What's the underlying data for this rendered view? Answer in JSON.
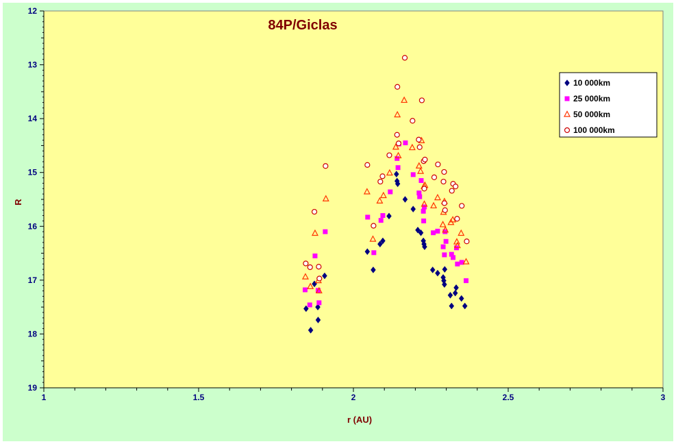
{
  "chart_data": {
    "type": "scatter",
    "title": "84P/Giclas",
    "xlabel": "r (AU)",
    "ylabel": "R",
    "xlim": [
      1,
      3
    ],
    "ylim": [
      12,
      19
    ],
    "y_inverted": true,
    "x_ticks": [
      "1",
      "1.5",
      "2",
      "2.5",
      "3"
    ],
    "y_ticks": [
      "12",
      "13",
      "14",
      "15",
      "16",
      "17",
      "18",
      "19"
    ],
    "grid": false,
    "legend_position": "right",
    "plot_background": "#ffff99",
    "figure_background": "#ccffcc",
    "series": [
      {
        "name": "10 000km",
        "marker": "diamond",
        "color": "#000080",
        "points": [
          [
            1.847,
            17.53
          ],
          [
            1.862,
            17.93
          ],
          [
            1.874,
            17.07
          ],
          [
            1.885,
            17.5
          ],
          [
            1.886,
            17.74
          ],
          [
            1.907,
            16.92
          ],
          [
            2.045,
            16.47
          ],
          [
            2.064,
            16.81
          ],
          [
            2.086,
            16.33
          ],
          [
            2.095,
            16.27
          ],
          [
            2.115,
            15.81
          ],
          [
            2.139,
            15.03
          ],
          [
            2.141,
            15.16
          ],
          [
            2.143,
            15.21
          ],
          [
            2.167,
            15.5
          ],
          [
            2.193,
            15.68
          ],
          [
            2.208,
            16.07
          ],
          [
            2.218,
            16.12
          ],
          [
            2.226,
            16.27
          ],
          [
            2.228,
            16.33
          ],
          [
            2.23,
            16.38
          ],
          [
            2.256,
            16.81
          ],
          [
            2.272,
            16.87
          ],
          [
            2.29,
            16.95
          ],
          [
            2.292,
            17.01
          ],
          [
            2.294,
            17.08
          ],
          [
            2.295,
            16.8
          ],
          [
            2.313,
            17.28
          ],
          [
            2.317,
            17.48
          ],
          [
            2.329,
            17.24
          ],
          [
            2.332,
            17.14
          ],
          [
            2.349,
            17.34
          ],
          [
            2.36,
            17.48
          ]
        ]
      },
      {
        "name": "25 000km",
        "marker": "square",
        "color": "#ff00ff",
        "points": [
          [
            1.844,
            17.18
          ],
          [
            1.859,
            17.46
          ],
          [
            1.876,
            16.55
          ],
          [
            1.886,
            17.19
          ],
          [
            1.889,
            17.42
          ],
          [
            1.909,
            16.1
          ],
          [
            2.046,
            15.83
          ],
          [
            2.066,
            16.49
          ],
          [
            2.089,
            15.89
          ],
          [
            2.095,
            15.8
          ],
          [
            2.119,
            15.36
          ],
          [
            2.141,
            14.74
          ],
          [
            2.144,
            14.91
          ],
          [
            2.147,
            14.47
          ],
          [
            2.168,
            14.45
          ],
          [
            2.193,
            15.04
          ],
          [
            2.212,
            15.38
          ],
          [
            2.214,
            15.45
          ],
          [
            2.219,
            15.15
          ],
          [
            2.226,
            15.72
          ],
          [
            2.227,
            15.9
          ],
          [
            2.229,
            15.64
          ],
          [
            2.258,
            16.12
          ],
          [
            2.272,
            16.09
          ],
          [
            2.29,
            16.38
          ],
          [
            2.294,
            16.53
          ],
          [
            2.296,
            16.1
          ],
          [
            2.299,
            16.28
          ],
          [
            2.317,
            16.52
          ],
          [
            2.322,
            16.58
          ],
          [
            2.333,
            16.4
          ],
          [
            2.336,
            16.7
          ],
          [
            2.35,
            16.67
          ],
          [
            2.364,
            17.01
          ]
        ]
      },
      {
        "name": "50 000km",
        "marker": "triangle",
        "color": "#ff3300",
        "points": [
          [
            1.845,
            16.94
          ],
          [
            1.861,
            17.12
          ],
          [
            1.876,
            16.13
          ],
          [
            1.887,
            17.01
          ],
          [
            1.889,
            17.2
          ],
          [
            1.911,
            15.49
          ],
          [
            2.044,
            15.36
          ],
          [
            2.063,
            16.24
          ],
          [
            2.085,
            15.53
          ],
          [
            2.097,
            15.43
          ],
          [
            2.117,
            15.01
          ],
          [
            2.137,
            14.53
          ],
          [
            2.142,
            13.93
          ],
          [
            2.145,
            14.69
          ],
          [
            2.164,
            13.66
          ],
          [
            2.19,
            14.54
          ],
          [
            2.212,
            14.88
          ],
          [
            2.217,
            14.98
          ],
          [
            2.22,
            14.41
          ],
          [
            2.228,
            15.26
          ],
          [
            2.229,
            15.59
          ],
          [
            2.231,
            15.24
          ],
          [
            2.259,
            15.62
          ],
          [
            2.272,
            15.47
          ],
          [
            2.289,
            15.97
          ],
          [
            2.291,
            15.74
          ],
          [
            2.294,
            15.54
          ],
          [
            2.297,
            16.07
          ],
          [
            2.315,
            15.93
          ],
          [
            2.321,
            15.88
          ],
          [
            2.334,
            16.29
          ],
          [
            2.336,
            16.36
          ],
          [
            2.348,
            16.13
          ],
          [
            2.364,
            16.66
          ]
        ]
      },
      {
        "name": "100 000km",
        "marker": "circle",
        "color": "#cc0000",
        "points": [
          [
            1.846,
            16.69
          ],
          [
            1.86,
            16.76
          ],
          [
            1.874,
            15.73
          ],
          [
            1.888,
            16.75
          ],
          [
            1.89,
            16.97
          ],
          [
            1.91,
            14.88
          ],
          [
            2.045,
            14.86
          ],
          [
            2.065,
            15.99
          ],
          [
            2.087,
            15.17
          ],
          [
            2.094,
            15.07
          ],
          [
            2.116,
            14.68
          ],
          [
            2.141,
            14.3
          ],
          [
            2.142,
            13.41
          ],
          [
            2.146,
            14.46
          ],
          [
            2.166,
            12.87
          ],
          [
            2.191,
            14.04
          ],
          [
            2.211,
            14.39
          ],
          [
            2.214,
            14.53
          ],
          [
            2.221,
            13.66
          ],
          [
            2.227,
            14.79
          ],
          [
            2.229,
            15.3
          ],
          [
            2.231,
            14.76
          ],
          [
            2.261,
            15.09
          ],
          [
            2.273,
            14.85
          ],
          [
            2.291,
            15.17
          ],
          [
            2.293,
            14.99
          ],
          [
            2.294,
            15.57
          ],
          [
            2.296,
            15.7
          ],
          [
            2.318,
            15.34
          ],
          [
            2.322,
            15.21
          ],
          [
            2.33,
            15.26
          ],
          [
            2.335,
            15.86
          ],
          [
            2.35,
            15.62
          ],
          [
            2.366,
            16.28
          ]
        ]
      }
    ]
  }
}
